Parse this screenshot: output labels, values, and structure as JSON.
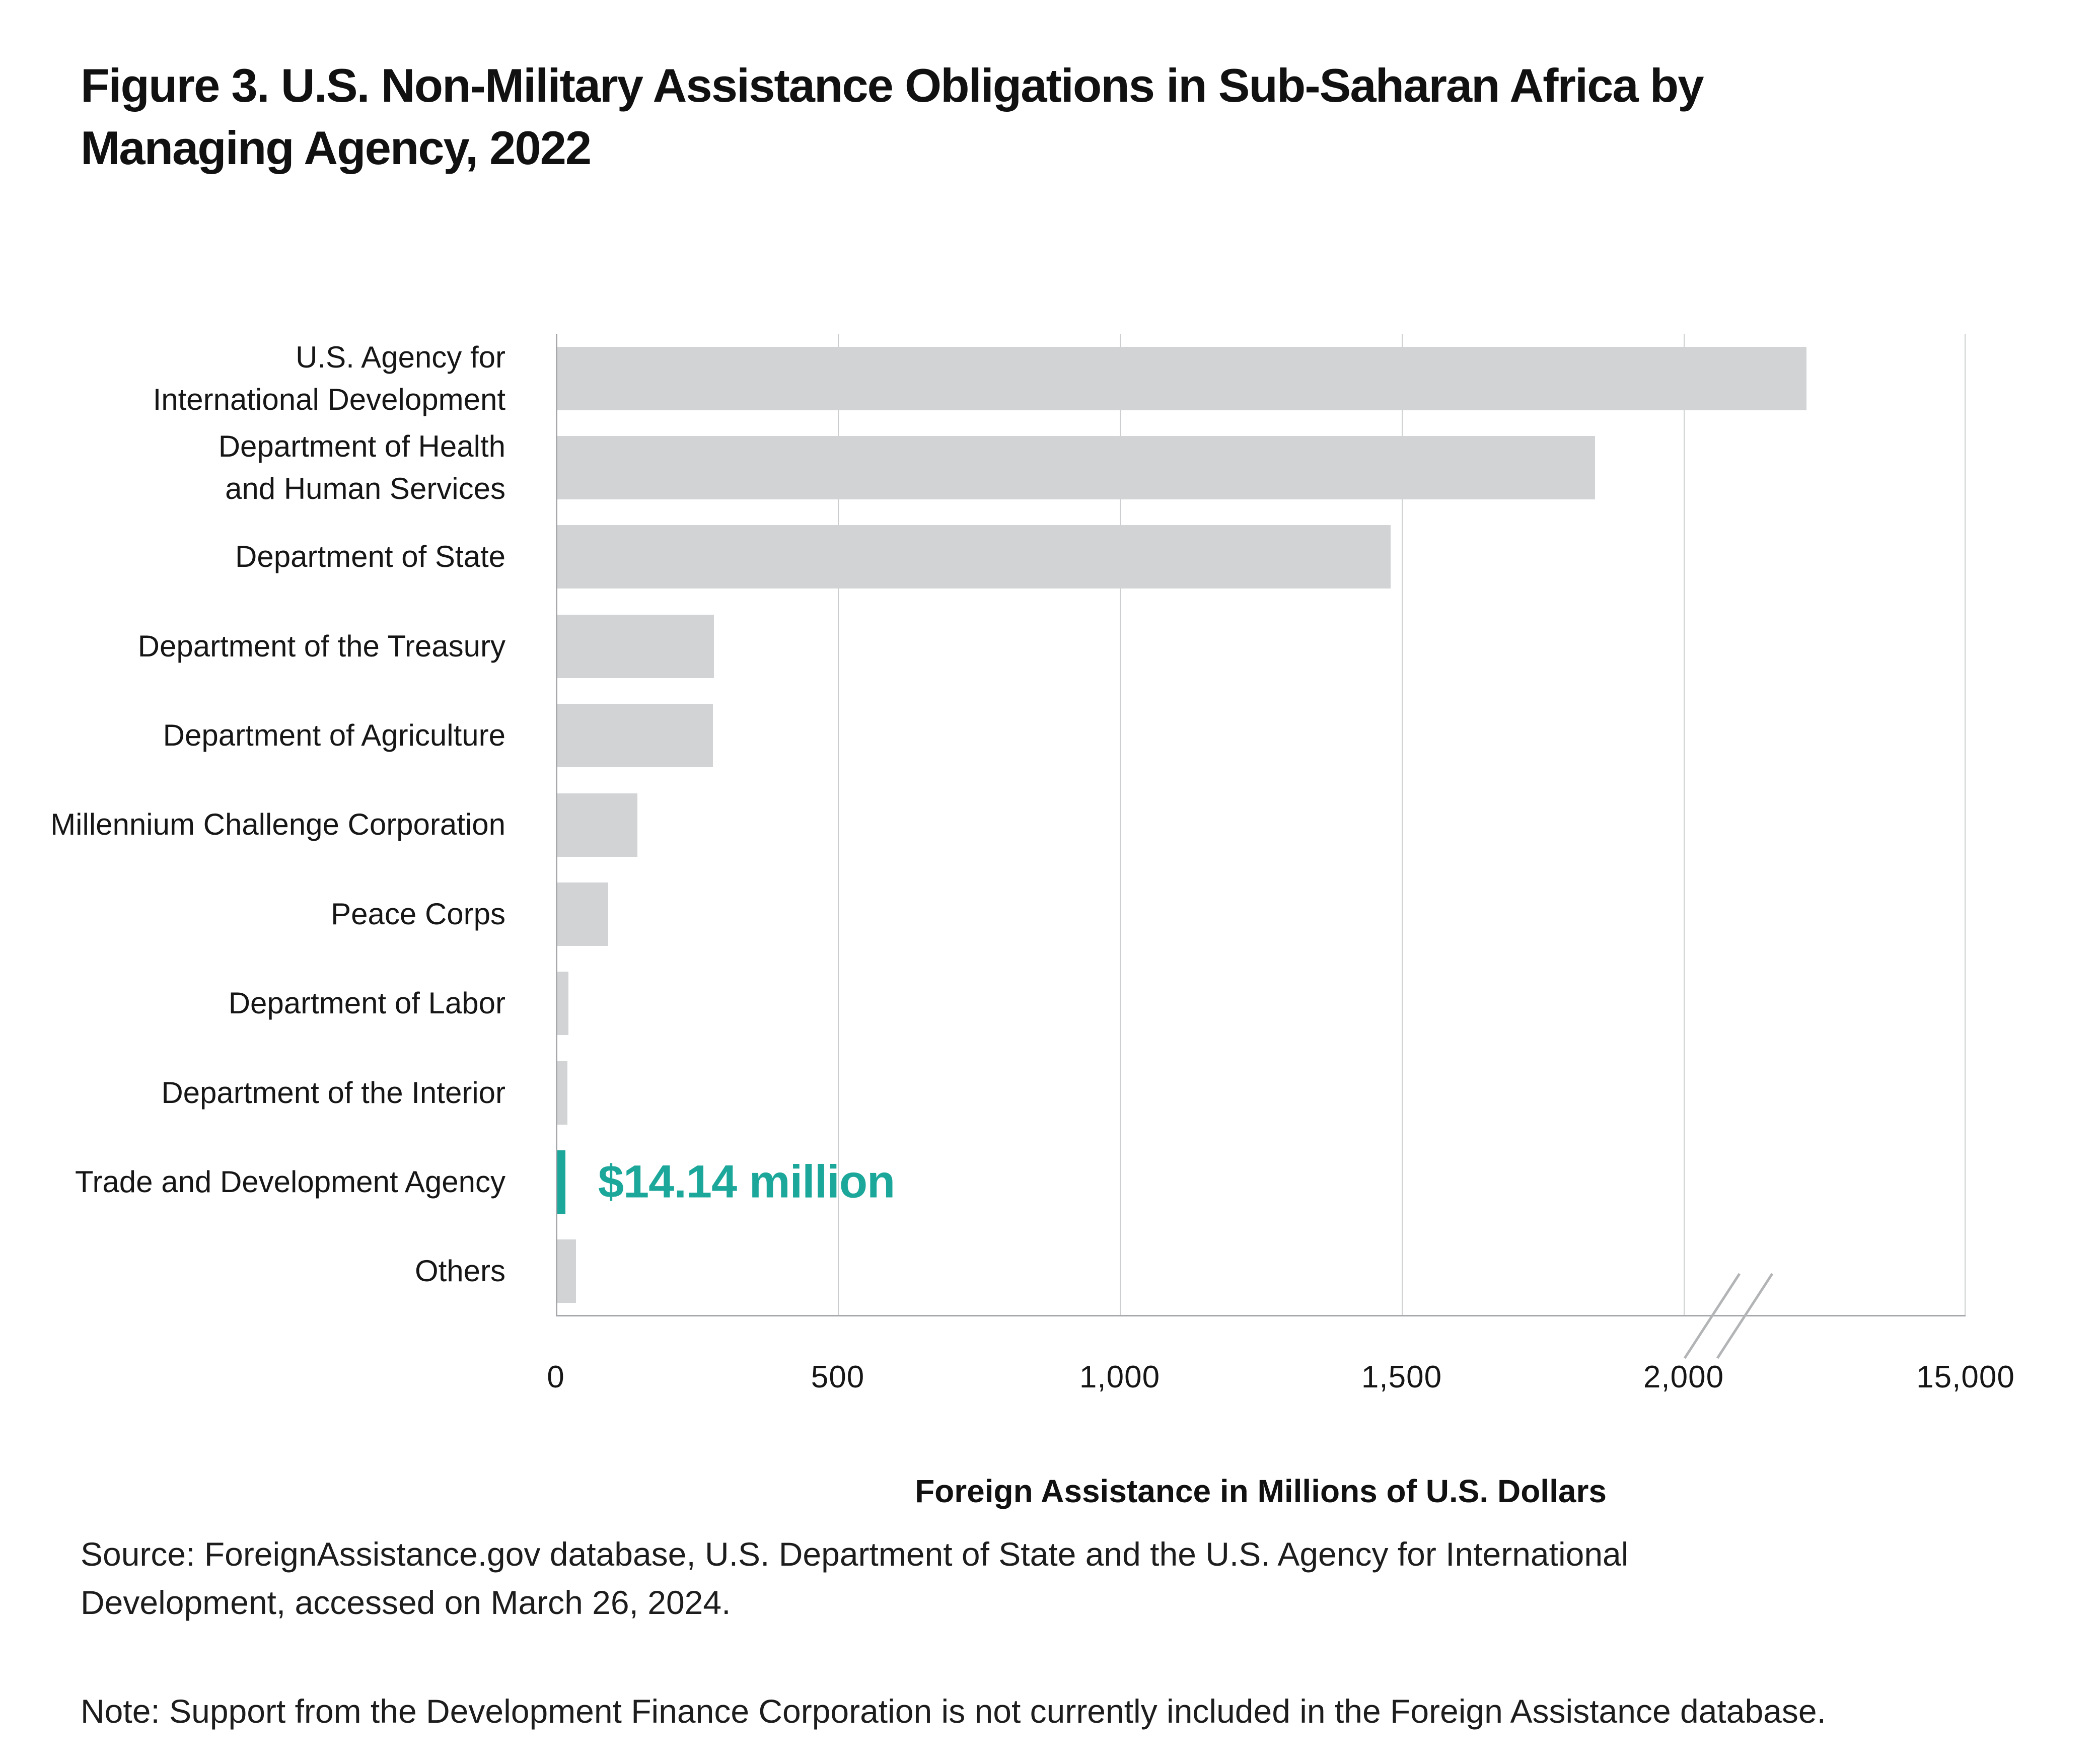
{
  "title": "Figure 3. U.S. Non-Military Assistance Obligations in Sub-Saharan Africa by\nManaging Agency, 2022",
  "chart_data": {
    "type": "bar",
    "orientation": "horizontal",
    "categories": [
      "U.S. Agency for\nInternational Development",
      "Department of Health\nand Human Services",
      "Department of State",
      "Department of the Treasury",
      "Department of Agriculture",
      "Millennium Challenge Corporation",
      "Peace Corps",
      "Department of Labor",
      "Department of the Interior",
      "Trade and Development Agency",
      "Others"
    ],
    "values": [
      2215,
      1840,
      1478,
      278,
      276,
      142,
      90,
      20,
      18,
      14.14,
      33
    ],
    "highlight": {
      "category_index": 9,
      "category": "Trade and Development Agency",
      "label": "$14.14 million",
      "color": "#1ca79b"
    },
    "bar_color": "#d1d3d4",
    "x_ticks": [
      {
        "label": "0",
        "value": 0
      },
      {
        "label": "500",
        "value": 500
      },
      {
        "label": "1,000",
        "value": 1000
      },
      {
        "label": "1,500",
        "value": 1500
      },
      {
        "label": "2,000",
        "value": 2000
      },
      {
        "label": "15,000",
        "value": 15000
      }
    ],
    "axis_break_after_value": 2000,
    "xlabel": "Foreign Assistance in Millions of U.S. Dollars",
    "xlim_linear": [
      0,
      2000
    ],
    "grid": true,
    "legend": "none"
  },
  "footer": {
    "source": "Source: ForeignAssistance.gov database, U.S. Department of State and the U.S. Agency for International\nDevelopment, accessed on March 26, 2024.",
    "note": "Note: Support from the Development Finance Corporation is not currently included in the Foreign Assistance database."
  },
  "colors": {
    "background": "#ffffff",
    "title_text": "#111111",
    "label_text": "#161616",
    "footer_text": "#1d1d1d",
    "gridline": "#cbcdce",
    "axis_line": "#a6a8ab",
    "bar_gray": "#d1d3d4",
    "highlight_teal": "#1ca79b"
  }
}
